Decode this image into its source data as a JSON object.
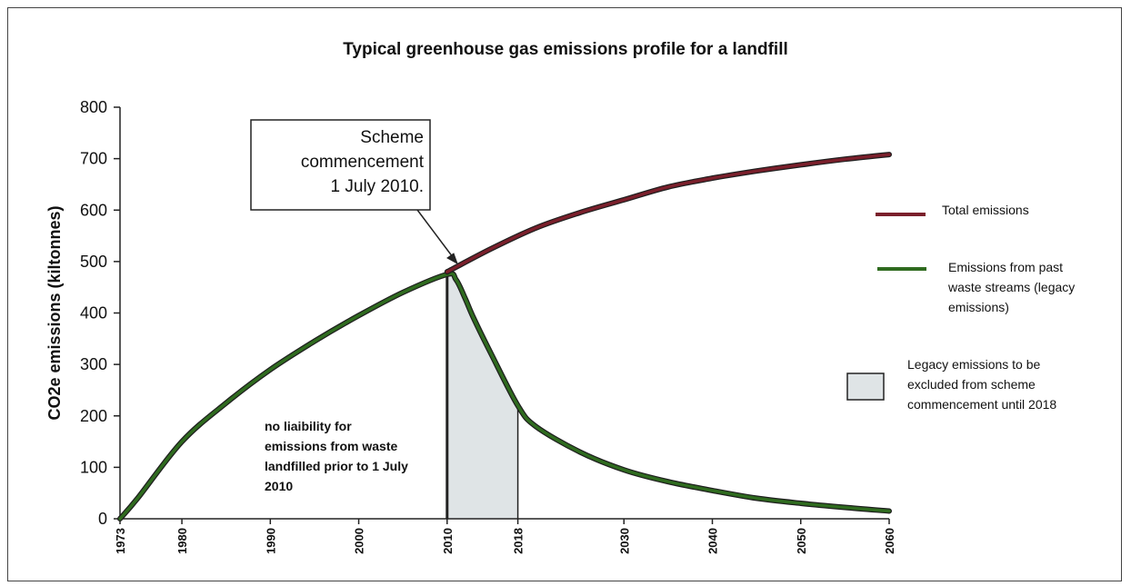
{
  "chart_data": {
    "type": "line",
    "title": "Typical greenhouse gas emissions profile for a landfill",
    "xlabel": "",
    "ylabel": "CO2e emissions (kiltonnes)",
    "xlim": [
      1973,
      2060
    ],
    "ylim": [
      0,
      800
    ],
    "y_ticks": [
      "0",
      "100",
      "200",
      "300",
      "400",
      "500",
      "600",
      "700",
      "800"
    ],
    "x_ticks": [
      "1973",
      "1980",
      "1990",
      "2000",
      "2010",
      "2018",
      "2030",
      "2040",
      "2050",
      "2060"
    ],
    "series": [
      {
        "name": "Total emissions",
        "color": "#7a1f2b",
        "x": [
          2010,
          2015,
          2020,
          2025,
          2030,
          2035,
          2040,
          2045,
          2050,
          2055,
          2060
        ],
        "y": [
          480,
          525,
          565,
          595,
          620,
          645,
          662,
          676,
          688,
          699,
          708
        ]
      },
      {
        "name": "Emissions from past waste streams (legacy emissions)",
        "color": "#2f6b1f",
        "x": [
          1973,
          1975,
          1980,
          1985,
          1990,
          1995,
          2000,
          2005,
          2010,
          2011,
          2012,
          2013,
          2015,
          2018,
          2020,
          2025,
          2030,
          2035,
          2040,
          2045,
          2050,
          2055,
          2060
        ],
        "y": [
          0,
          40,
          150,
          225,
          290,
          345,
          395,
          440,
          475,
          465,
          430,
          390,
          320,
          220,
          180,
          130,
          95,
          72,
          55,
          40,
          30,
          22,
          15
        ]
      }
    ],
    "legend": {
      "placement": "right",
      "items": [
        {
          "label": "Total emissions",
          "kind": "line",
          "color": "#7a1f2b"
        },
        {
          "label": "Emissions from past waste streams (legacy emissions)",
          "kind": "line",
          "color": "#2f6b1f",
          "lines": [
            "Emissions from past",
            "waste streams (legacy",
            "emissions)"
          ]
        },
        {
          "label": "Legacy emissions to be excluded from scheme commencement until 2018",
          "kind": "box",
          "color": "#dfe4e6",
          "lines": [
            "Legacy emissions to be",
            "excluded from scheme",
            "commencement until 2018"
          ]
        }
      ]
    },
    "shaded_region": {
      "x_start": 2010,
      "x_end": 2018,
      "color": "#dfe4e6"
    },
    "annotations": {
      "callout": [
        "Scheme",
        "commencement",
        "1 July 2010."
      ],
      "note": [
        "no  liaibility for",
        "emissions from waste",
        "landfilled prior to 1 July",
        "2010"
      ]
    },
    "grid": false
  }
}
